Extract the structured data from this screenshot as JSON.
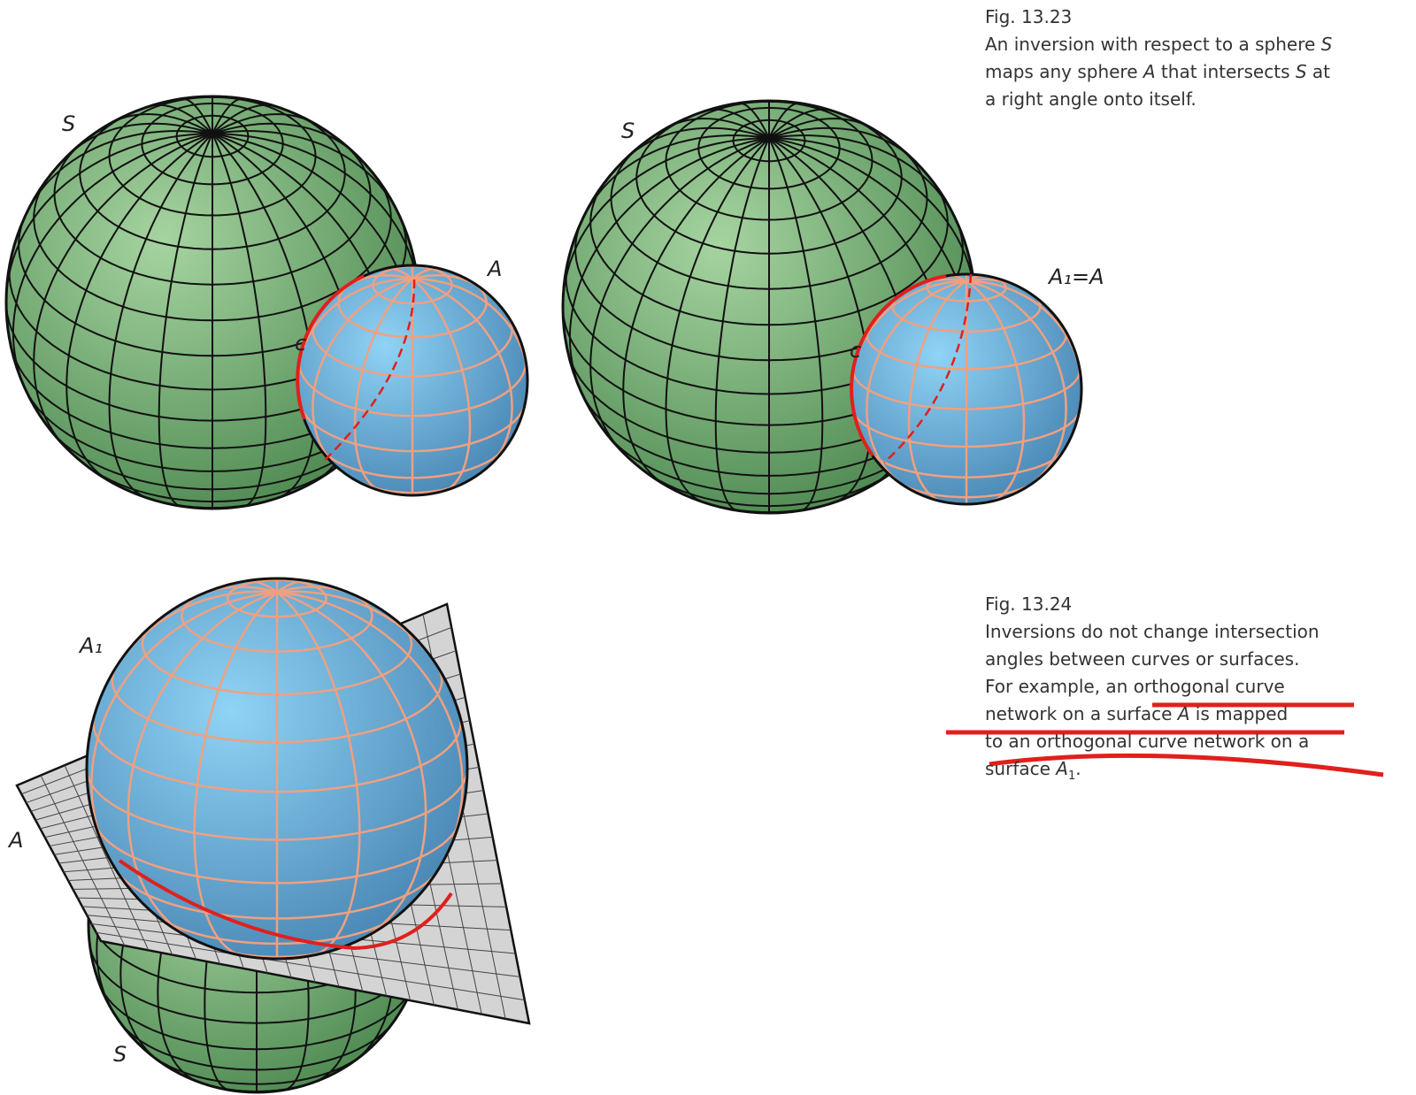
{
  "figures": [
    {
      "number": "Fig. 13.23",
      "caption": [
        [
          {
            "text": "An inversion with respect to a sphere "
          },
          {
            "text": "S",
            "italic": true
          }
        ],
        [
          {
            "text": "maps any sphere "
          },
          {
            "text": "A",
            "italic": true
          },
          {
            "text": " that intersects "
          },
          {
            "text": "S",
            "italic": true
          },
          {
            "text": " at"
          }
        ],
        [
          {
            "text": "a right angle onto itself."
          }
        ]
      ],
      "labels": [
        "S",
        "A",
        "c",
        "S",
        "A₁=A",
        "c"
      ]
    },
    {
      "number": "Fig. 13.24",
      "caption": [
        [
          {
            "text": "Inversions do not change intersection"
          }
        ],
        [
          {
            "text": "angles between curves or surfaces."
          }
        ],
        [
          {
            "text": "For example, an orthogonal curve"
          }
        ],
        [
          {
            "text": "network on a surface "
          },
          {
            "text": "A",
            "italic": true
          },
          {
            "text": " is mapped"
          }
        ],
        [
          {
            "text": "to an orthogonal curve network on a"
          }
        ],
        [
          {
            "text": "surface "
          },
          {
            "text": "A",
            "italic": true
          },
          {
            "text": "1",
            "sub": true
          },
          {
            "text": "."
          }
        ]
      ],
      "labels": [
        "A₁",
        "A",
        "S"
      ]
    }
  ]
}
